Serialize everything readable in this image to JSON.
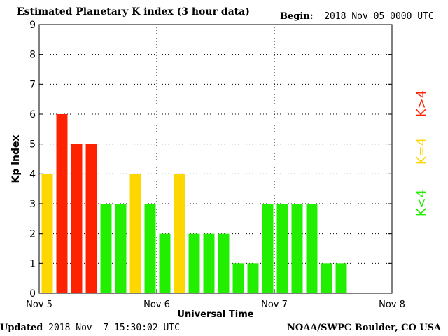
{
  "header": {
    "title": "Estimated Planetary K index (3 hour data)",
    "begin_label": "Begin:",
    "begin_value": "2018 Nov 05 0000 UTC"
  },
  "footer": {
    "updated_label": "Updated",
    "updated_value": "2018 Nov  7 15:30:02 UTC",
    "credit": "NOAA/SWPC Boulder, CO USA"
  },
  "legend": {
    "high": "K>4",
    "mid": "K=4",
    "low": "K<4"
  },
  "colors": {
    "high": "#ff2200",
    "mid": "#ffd700",
    "low": "#22ee00",
    "grid": "#000000"
  },
  "chart_data": {
    "type": "bar",
    "title": "Estimated Planetary K index (3 hour data)",
    "xlabel": "Universal Time",
    "ylabel": "Kp index",
    "ylim": [
      0,
      9
    ],
    "yticks": [
      0,
      1,
      2,
      3,
      4,
      5,
      6,
      7,
      8,
      9
    ],
    "xlim": [
      "2018-11-05 00:00",
      "2018-11-08 00:00"
    ],
    "xticks": [
      "Nov 5",
      "Nov 6",
      "Nov 7",
      "Nov 8"
    ],
    "interval_hours": 3,
    "grid": true,
    "values": [
      4,
      6,
      5,
      5,
      3,
      3,
      4,
      3,
      2,
      4,
      2,
      2,
      2,
      1,
      1,
      3,
      3,
      3,
      3,
      1,
      1
    ]
  }
}
